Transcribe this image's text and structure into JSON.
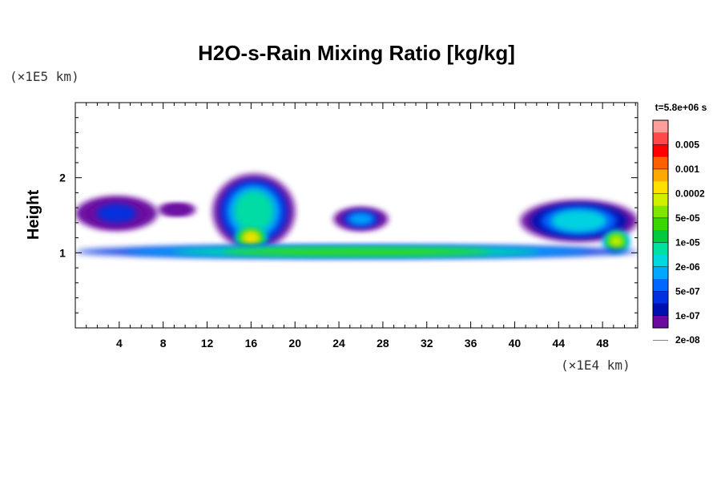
{
  "chart_data": {
    "type": "heatmap",
    "title": "H2O-s-Rain Mixing Ratio [kg/kg]",
    "ylabel": "Height",
    "y_unit_label": "(×1E5 km)",
    "x_unit_label": "(×1E4 km)",
    "time_label": "t=5.8e+06 s",
    "xlim": [
      0,
      51.2
    ],
    "ylim": [
      0,
      3
    ],
    "x_ticks": [
      4,
      8,
      12,
      16,
      20,
      24,
      28,
      32,
      36,
      40,
      44,
      48
    ],
    "x_tick_labels": [
      "4",
      "8",
      "12",
      "16",
      "20",
      "24",
      "28",
      "32",
      "36",
      "40",
      "44",
      "48"
    ],
    "y_ticks": [
      1,
      2
    ],
    "y_tick_labels": [
      "1",
      "2"
    ],
    "colorbar": {
      "labels": [
        "0.005",
        "0.001",
        "0.0002",
        "5e-05",
        "1e-05",
        "2e-06",
        "5e-07",
        "1e-07",
        "2e-08"
      ],
      "colors": [
        "#ff9c9c",
        "#ff4848",
        "#ff0000",
        "#ff6000",
        "#ffa800",
        "#ffe000",
        "#d0f000",
        "#80e800",
        "#38d800",
        "#00c840",
        "#00e0a0",
        "#00d8e0",
        "#00a8ff",
        "#0068ff",
        "#0030e0",
        "#0010b0",
        "#6a0aa0"
      ]
    },
    "regions": [
      {
        "name": "left-upper-cloud",
        "x": [
          0,
          7.5
        ],
        "y": [
          1.3,
          1.75
        ],
        "level": 2
      },
      {
        "name": "left-upper-edge",
        "x": [
          7.5,
          11
        ],
        "y": [
          1.5,
          1.65
        ],
        "level": 0
      },
      {
        "name": "convective-tower",
        "x": [
          12.5,
          20
        ],
        "y": [
          1.05,
          2.05
        ],
        "level": 6
      },
      {
        "name": "convective-core",
        "x": [
          14.5,
          17.5
        ],
        "y": [
          1.05,
          1.35
        ],
        "level": 11
      },
      {
        "name": "mid-cloud-24",
        "x": [
          23.5,
          28.5
        ],
        "y": [
          1.3,
          1.6
        ],
        "level": 4
      },
      {
        "name": "right-upper-cloud",
        "x": [
          40.5,
          51.2
        ],
        "y": [
          1.15,
          1.7
        ],
        "level": 5
      },
      {
        "name": "right-core",
        "x": [
          48,
          50.5
        ],
        "y": [
          1.0,
          1.3
        ],
        "level": 10
      },
      {
        "name": "surface-rain-band",
        "x": [
          0,
          51.2
        ],
        "y": [
          0.93,
          1.1
        ],
        "level": 8
      }
    ]
  }
}
